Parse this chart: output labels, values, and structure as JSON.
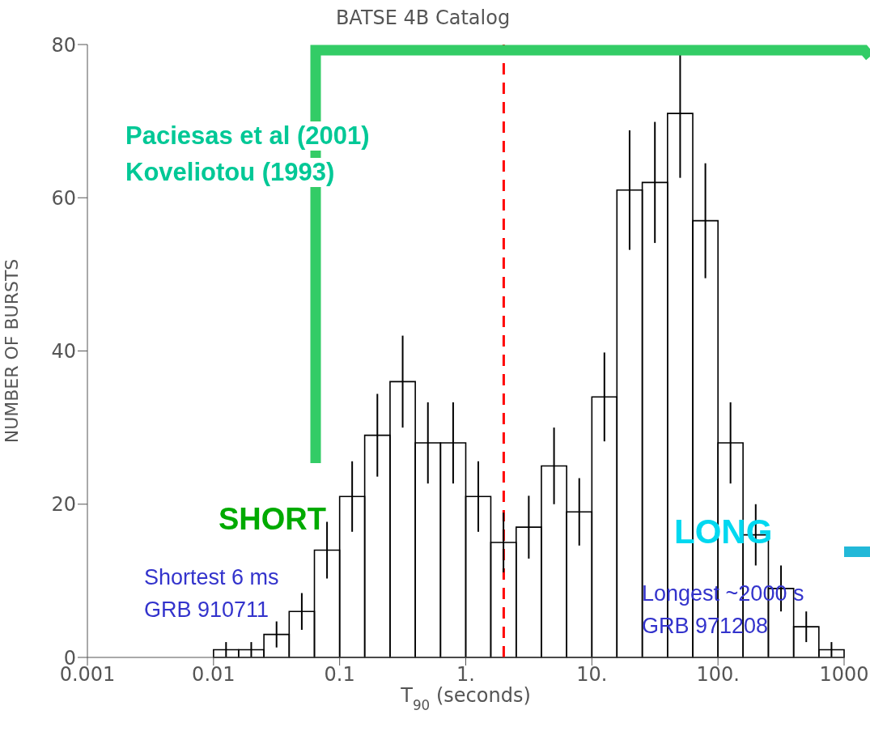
{
  "chart_data": {
    "type": "histogram",
    "title": "BATSE 4B Catalog",
    "xlabel": "T$_{90}$ (seconds)",
    "ylabel": "NUMBER OF BURSTS",
    "bins": [
      0.01,
      0.0158,
      0.0251,
      0.0398,
      0.0631,
      0.1,
      0.158,
      0.251,
      0.398,
      0.631,
      1,
      1.58,
      2.51,
      3.98,
      6.31,
      10,
      15.8,
      25.1,
      39.8,
      63.1,
      100,
      158,
      251,
      398,
      631,
      1000
    ],
    "values": [
      1,
      1,
      3,
      6,
      14,
      21,
      29,
      36,
      28,
      28,
      21,
      15,
      17,
      25,
      19,
      34,
      61,
      62,
      71,
      57,
      28,
      16,
      9,
      4,
      1
    ],
    "errors": [
      1,
      1,
      1.7,
      2.4,
      3.7,
      4.6,
      5.4,
      6,
      5.3,
      5.3,
      4.6,
      3.9,
      4.1,
      5,
      4.4,
      5.8,
      7.8,
      7.9,
      8.4,
      7.5,
      5.3,
      4,
      3,
      2,
      1
    ],
    "color": "#000000",
    "log": "x",
    "xlim": [
      0.001,
      1000
    ],
    "xticks": [
      0.001,
      0.01,
      0.1,
      {
        "value": 1,
        "label": "1."
      },
      {
        "value": 10,
        "label": "10."
      },
      {
        "value": 100,
        "label": "100."
      },
      1000
    ],
    "ylim": [
      0,
      80
    ],
    "yticks": [
      0,
      20,
      40,
      60,
      80
    ],
    "grid": false,
    "ref_lines": [
      {
        "axis": "x",
        "value": 2,
        "color": "#ff0000",
        "line_style": "dashed"
      }
    ],
    "annotations": [
      "Paciesas et al (2001)",
      "Koveliotou (1993)",
      "SHORT",
      "LONG",
      "Shortest 6 ms",
      "GRB 910711",
      "Longest ~2000 s",
      "GRB 971208"
    ]
  }
}
